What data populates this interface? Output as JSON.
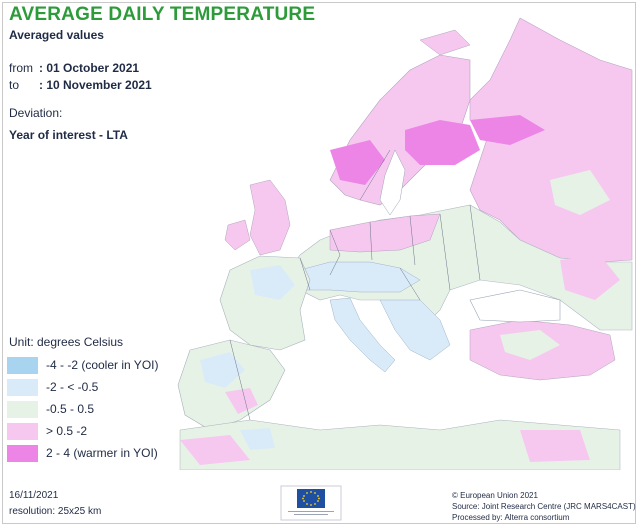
{
  "title": "AVERAGE DAILY TEMPERATURE",
  "subtitle": "Averaged values",
  "period": {
    "from_label": "from",
    "from_value": ": 01 October 2021",
    "to_label": "to",
    "to_value": ": 10 November 2021"
  },
  "deviation": {
    "label": "Deviation:",
    "value": "Year of interest - LTA"
  },
  "legend": {
    "title": "Unit: degrees Celsius",
    "items": [
      {
        "label": "-4 - -2 (cooler in YOI)",
        "color": "#a9d4ef"
      },
      {
        "label": "-2 - < -0.5",
        "color": "#d9ebf8"
      },
      {
        "label": "-0.5 - 0.5",
        "color": "#e7f2e7"
      },
      {
        "label": "> 0.5 -2",
        "color": "#f6c8f0"
      },
      {
        "label": "2 - 4 (warmer in YOI)",
        "color": "#ec85e6"
      }
    ]
  },
  "footer": {
    "date": "16/11/2021",
    "resolution": "resolution: 25x25 km",
    "copyright": "© European Union 2021",
    "source": "Source: Joint Research Centre (JRC MARS4CAST)",
    "processed": "Processed by: Alterra consortium"
  },
  "colors": {
    "title": "#2e9b3a",
    "sea": "#ffffff",
    "border": "#6b7487",
    "eu_flag": "#1f4fa0",
    "eu_star": "#ffd617"
  }
}
